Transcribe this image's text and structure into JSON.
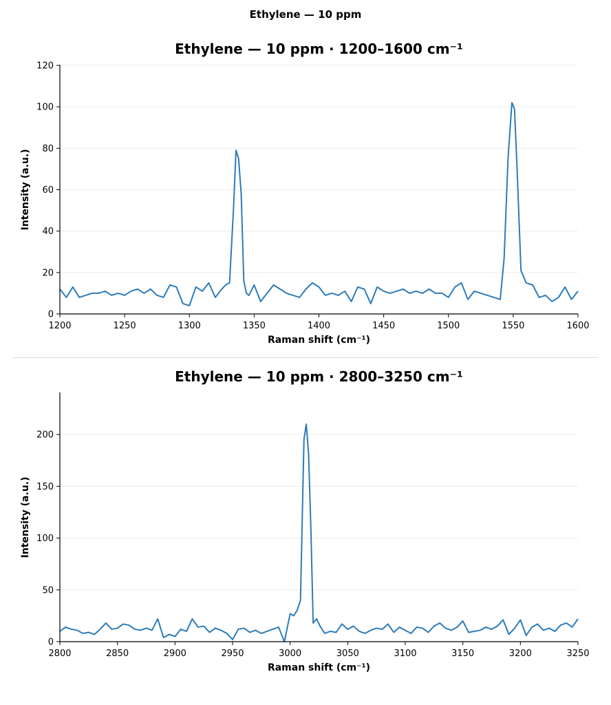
{
  "suptitle": "Ethylene — 10 ppm",
  "colors": {
    "line": "#2b7bba",
    "grid": "#ececec",
    "axis": "#000000"
  },
  "chart_data": [
    {
      "type": "line",
      "title": "Ethylene — 10 ppm · 1200–1600 cm⁻¹",
      "xlabel": "Raman shift (cm⁻¹)",
      "ylabel": "Intensity (a.u.)",
      "xlim": [
        1200,
        1600
      ],
      "ylim": [
        0,
        120
      ],
      "xticks": [
        1200,
        1250,
        1300,
        1350,
        1400,
        1450,
        1500,
        1550,
        1600
      ],
      "yticks": [
        0,
        20,
        40,
        60,
        80,
        100,
        120
      ],
      "grid": "horizontal",
      "series": [
        {
          "x": [
            1200,
            1205,
            1210,
            1215,
            1220,
            1225,
            1230,
            1235,
            1240,
            1245,
            1250,
            1255,
            1260,
            1265,
            1270,
            1275,
            1280,
            1285,
            1290,
            1295,
            1300,
            1305,
            1310,
            1315,
            1320,
            1325,
            1328,
            1331,
            1334,
            1336,
            1338,
            1340,
            1342,
            1344,
            1346,
            1350,
            1355,
            1360,
            1365,
            1370,
            1375,
            1380,
            1385,
            1390,
            1395,
            1400,
            1405,
            1410,
            1415,
            1420,
            1425,
            1430,
            1435,
            1440,
            1445,
            1450,
            1455,
            1460,
            1465,
            1470,
            1475,
            1480,
            1485,
            1490,
            1495,
            1500,
            1505,
            1510,
            1515,
            1520,
            1525,
            1530,
            1535,
            1540,
            1543,
            1546,
            1549,
            1551,
            1553,
            1556,
            1560,
            1565,
            1570,
            1575,
            1580,
            1585,
            1590,
            1595,
            1600
          ],
          "y": [
            12,
            8,
            13,
            8,
            9,
            10,
            10,
            11,
            9,
            10,
            9,
            11,
            12,
            10,
            12,
            9,
            8,
            14,
            13,
            5,
            4,
            13,
            11,
            15,
            8,
            12,
            14,
            15,
            50,
            79,
            75,
            58,
            16,
            10,
            9,
            14,
            6,
            10,
            14,
            12,
            10,
            9,
            8,
            12,
            15,
            13,
            9,
            10,
            9,
            11,
            6,
            13,
            12,
            5,
            13,
            11,
            10,
            11,
            12,
            10,
            11,
            10,
            12,
            10,
            10,
            8,
            13,
            15,
            7,
            11,
            10,
            9,
            8,
            7,
            27,
            75,
            102,
            99,
            70,
            21,
            15,
            14,
            8,
            9,
            6,
            8,
            13,
            7,
            11
          ]
        }
      ]
    },
    {
      "type": "line",
      "title": "Ethylene — 10 ppm · 2800–3250 cm⁻¹",
      "xlabel": "Raman shift (cm⁻¹)",
      "ylabel": "Intensity (a.u.)",
      "xlim": [
        2800,
        3250
      ],
      "ylim": [
        0,
        240
      ],
      "xticks": [
        2800,
        2850,
        2900,
        2950,
        3000,
        3050,
        3100,
        3150,
        3200,
        3250
      ],
      "yticks": [
        0,
        50,
        100,
        150,
        200
      ],
      "grid": "horizontal",
      "series": [
        {
          "x": [
            2800,
            2805,
            2810,
            2815,
            2820,
            2825,
            2830,
            2835,
            2840,
            2845,
            2850,
            2855,
            2860,
            2865,
            2870,
            2875,
            2880,
            2885,
            2890,
            2895,
            2900,
            2905,
            2910,
            2915,
            2920,
            2925,
            2930,
            2935,
            2940,
            2945,
            2950,
            2955,
            2960,
            2965,
            2970,
            2975,
            2980,
            2985,
            2990,
            2995,
            3000,
            3003,
            3006,
            3009,
            3012,
            3014,
            3016,
            3018,
            3020,
            3023,
            3026,
            3030,
            3035,
            3040,
            3045,
            3050,
            3055,
            3060,
            3065,
            3070,
            3075,
            3080,
            3085,
            3090,
            3095,
            3100,
            3105,
            3110,
            3115,
            3120,
            3125,
            3130,
            3135,
            3140,
            3145,
            3150,
            3155,
            3160,
            3165,
            3170,
            3175,
            3180,
            3185,
            3190,
            3195,
            3200,
            3205,
            3210,
            3215,
            3220,
            3225,
            3230,
            3235,
            3240,
            3245,
            3250
          ],
          "y": [
            10,
            14,
            12,
            11,
            8,
            9,
            7,
            12,
            18,
            12,
            13,
            17,
            16,
            12,
            11,
            13,
            11,
            22,
            4,
            7,
            5,
            12,
            10,
            22,
            14,
            15,
            9,
            13,
            11,
            8,
            2,
            12,
            13,
            9,
            11,
            8,
            10,
            12,
            14,
            0,
            27,
            25,
            30,
            40,
            195,
            210,
            182,
            110,
            18,
            22,
            15,
            8,
            10,
            9,
            17,
            12,
            15,
            10,
            8,
            11,
            13,
            12,
            17,
            9,
            14,
            11,
            8,
            14,
            13,
            9,
            15,
            18,
            13,
            11,
            14,
            20,
            9,
            10,
            11,
            14,
            12,
            15,
            21,
            7,
            13,
            21,
            6,
            14,
            17,
            11,
            13,
            10,
            16,
            18,
            14,
            22
          ]
        }
      ]
    }
  ]
}
